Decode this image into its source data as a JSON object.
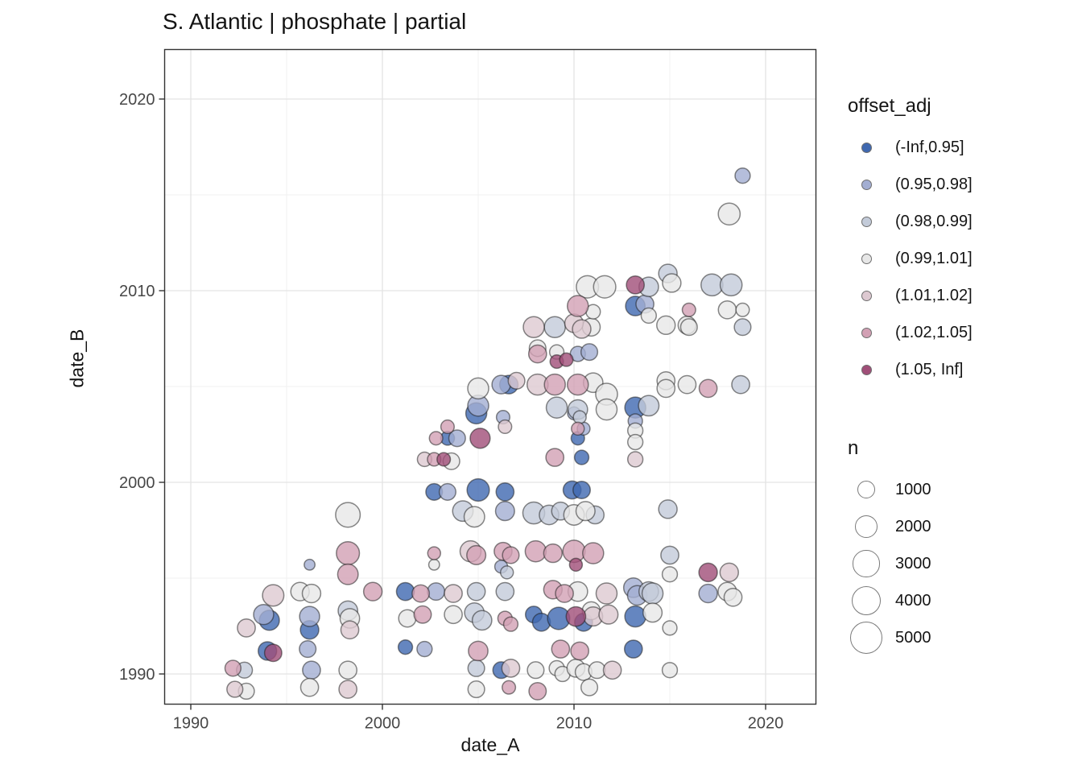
{
  "title": "S. Atlantic | phosphate | partial",
  "legend": {
    "color": {
      "title": "offset_adj",
      "items": [
        {
          "label": "(-Inf,0.95]",
          "color": "#3f68b0"
        },
        {
          "label": "(0.95,0.98]",
          "color": "#a3aed2"
        },
        {
          "label": "(0.98,0.99]",
          "color": "#c3cbd9"
        },
        {
          "label": "(0.99,1.01]",
          "color": "#e7e7e7"
        },
        {
          "label": "(1.01,1.02]",
          "color": "#ddc9d1"
        },
        {
          "label": "(1.02,1.05]",
          "color": "#d2a0b4"
        },
        {
          "label": "(1.05, Inf]",
          "color": "#a04e78"
        }
      ]
    },
    "size": {
      "title": "n",
      "items": [
        1000,
        2000,
        3000,
        4000,
        5000
      ]
    }
  },
  "chart_data": {
    "type": "scatter",
    "title": "S. Atlantic | phosphate | partial",
    "xlabel": "date_A",
    "ylabel": "date_B",
    "x_ticks": [
      1990,
      2000,
      2010,
      2020
    ],
    "y_ticks": [
      1990,
      2000,
      2010,
      2020
    ],
    "x_minor_ticks": [
      1995,
      2005,
      2015
    ],
    "y_minor_ticks": [
      1995,
      2005,
      2015
    ],
    "x_range": [
      1988.6,
      2022.6
    ],
    "y_range": [
      1988.4,
      2022.6
    ],
    "grid": "major+minor",
    "legend_position": "right",
    "size_title": "n",
    "color_title": "offset_adj",
    "series": [
      {
        "name": "(-Inf,0.95]",
        "color": "#3f68b0",
        "points": [
          [
            1994.1,
            1992.8,
            1300
          ],
          [
            1994.0,
            1991.2,
            1000
          ],
          [
            1996.2,
            1992.3,
            1000
          ],
          [
            2001.2,
            1994.3,
            900
          ],
          [
            2001.2,
            1991.4,
            400
          ],
          [
            2002.7,
            1999.5,
            700
          ],
          [
            2005.0,
            1999.6,
            1800
          ],
          [
            2006.4,
            1999.5,
            900
          ],
          [
            2009.9,
            1999.6,
            900
          ],
          [
            2010.4,
            1999.6,
            800
          ],
          [
            2007.9,
            1993.1,
            700
          ],
          [
            2008.3,
            1992.7,
            900
          ],
          [
            2009.2,
            1992.9,
            1800
          ],
          [
            2010.5,
            1992.7,
            900
          ],
          [
            2013.2,
            1993.0,
            1500
          ],
          [
            2013.1,
            1991.3,
            900
          ],
          [
            2006.2,
            1990.2,
            700
          ],
          [
            2003.4,
            2002.3,
            350
          ],
          [
            2004.9,
            2003.6,
            1500
          ],
          [
            2006.6,
            2005.1,
            1000
          ],
          [
            2010.4,
            2001.3,
            400
          ],
          [
            2010.2,
            2002.3,
            300
          ],
          [
            2013.2,
            2003.9,
            1500
          ],
          [
            2013.2,
            2009.2,
            1200
          ]
        ]
      },
      {
        "name": "(0.95,0.98]",
        "color": "#a3aed2",
        "points": [
          [
            1993.8,
            1993.1,
            1300
          ],
          [
            1996.2,
            1995.7,
            100
          ],
          [
            1996.2,
            1993.0,
            1300
          ],
          [
            1996.1,
            1991.3,
            700
          ],
          [
            1996.3,
            1990.2,
            900
          ],
          [
            2002.8,
            1994.3,
            800
          ],
          [
            2002.2,
            1991.3,
            500
          ],
          [
            2003.4,
            1999.5,
            700
          ],
          [
            2006.2,
            1995.6,
            250
          ],
          [
            2006.4,
            1998.5,
            1100
          ],
          [
            2013.1,
            1994.5,
            1200
          ],
          [
            2013.3,
            1994.1,
            1200
          ],
          [
            2017.0,
            1994.2,
            1000
          ],
          [
            2003.9,
            2002.3,
            700
          ],
          [
            2005.0,
            2004.0,
            1500
          ],
          [
            2006.2,
            2005.1,
            1000
          ],
          [
            2006.3,
            2003.4,
            300
          ],
          [
            2010.0,
            2003.6,
            250
          ],
          [
            2010.5,
            2002.8,
            250
          ],
          [
            2010.2,
            2006.7,
            500
          ],
          [
            2010.8,
            2006.8,
            700
          ],
          [
            2013.2,
            2003.2,
            400
          ],
          [
            2013.7,
            2009.3,
            900
          ],
          [
            2018.8,
            2016.0,
            500
          ]
        ]
      },
      {
        "name": "(0.98,0.99]",
        "color": "#c3cbd9",
        "points": [
          [
            1992.8,
            1990.2,
            600
          ],
          [
            1998.2,
            1993.3,
            1200
          ],
          [
            2004.2,
            1998.5,
            1400
          ],
          [
            2006.5,
            1995.3,
            250
          ],
          [
            2007.9,
            1998.4,
            1700
          ],
          [
            2008.7,
            1998.3,
            1200
          ],
          [
            2009.3,
            1998.5,
            900
          ],
          [
            2011.1,
            1998.3,
            900
          ],
          [
            2014.9,
            1998.6,
            1000
          ],
          [
            2004.9,
            1994.3,
            900
          ],
          [
            2006.4,
            1994.3,
            900
          ],
          [
            2013.9,
            1994.3,
            1200
          ],
          [
            2004.8,
            1993.2,
            1200
          ],
          [
            2005.2,
            1992.8,
            1200
          ],
          [
            2004.9,
            1990.3,
            700
          ],
          [
            2014.1,
            1994.2,
            1500
          ],
          [
            2015.0,
            1996.2,
            900
          ],
          [
            2009.1,
            2003.9,
            1500
          ],
          [
            2010.2,
            2003.8,
            1200
          ],
          [
            2010.3,
            2003.4,
            250
          ],
          [
            2013.9,
            2004.0,
            1400
          ],
          [
            2009.0,
            2008.1,
            1500
          ],
          [
            2013.9,
            2010.2,
            1200
          ],
          [
            2014.9,
            2010.9,
            1000
          ],
          [
            2017.2,
            2010.3,
            1700
          ],
          [
            2018.2,
            2010.3,
            1700
          ],
          [
            2018.7,
            2005.1,
            900
          ],
          [
            2018.8,
            2008.1,
            700
          ]
        ]
      },
      {
        "name": "(0.99,1.01]",
        "color": "#e7e7e7",
        "points": [
          [
            1992.9,
            1989.1,
            600
          ],
          [
            1995.7,
            1994.3,
            1000
          ],
          [
            1996.3,
            1994.2,
            1000
          ],
          [
            1996.2,
            1989.3,
            900
          ],
          [
            1998.2,
            1998.3,
            2400
          ],
          [
            1998.3,
            1992.9,
            1200
          ],
          [
            1998.2,
            1990.2,
            900
          ],
          [
            2001.3,
            1992.9,
            800
          ],
          [
            2002.7,
            1995.7,
            100
          ],
          [
            2004.8,
            1998.2,
            1400
          ],
          [
            2010.0,
            1998.3,
            1400
          ],
          [
            2010.6,
            1998.5,
            1100
          ],
          [
            2010.2,
            1994.3,
            1200
          ],
          [
            2003.7,
            1993.1,
            900
          ],
          [
            2010.9,
            1993.3,
            900
          ],
          [
            2014.1,
            1993.2,
            1100
          ],
          [
            2015.0,
            1992.4,
            400
          ],
          [
            2008.0,
            1990.2,
            700
          ],
          [
            2009.1,
            1990.3,
            500
          ],
          [
            2009.4,
            1990.0,
            500
          ],
          [
            2010.1,
            1990.3,
            900
          ],
          [
            2010.5,
            1990.1,
            700
          ],
          [
            2011.2,
            1990.2,
            700
          ],
          [
            2015.0,
            1990.2,
            500
          ],
          [
            2004.9,
            1989.2,
            700
          ],
          [
            2010.8,
            1989.3,
            700
          ],
          [
            2015.0,
            1995.2,
            500
          ],
          [
            2018.0,
            1994.3,
            1000
          ],
          [
            2018.3,
            1994.0,
            900
          ],
          [
            2003.6,
            2001.1,
            700
          ],
          [
            2005.0,
            2004.9,
            1500
          ],
          [
            2011.0,
            2005.2,
            1200
          ],
          [
            2011.7,
            2004.6,
            1700
          ],
          [
            2014.8,
            2005.3,
            900
          ],
          [
            2014.8,
            2004.9,
            900
          ],
          [
            2015.9,
            2005.1,
            900
          ],
          [
            2011.7,
            2003.8,
            1500
          ],
          [
            2013.2,
            2002.7,
            500
          ],
          [
            2013.2,
            2002.1,
            500
          ],
          [
            2008.1,
            2007.0,
            700
          ],
          [
            2009.1,
            2006.8,
            400
          ],
          [
            2010.9,
            2008.1,
            900
          ],
          [
            2011.0,
            2008.9,
            400
          ],
          [
            2013.9,
            2008.7,
            500
          ],
          [
            2014.8,
            2008.2,
            1000
          ],
          [
            2015.9,
            2008.2,
            900
          ],
          [
            2016.0,
            2008.1,
            700
          ],
          [
            2018.0,
            2009.0,
            900
          ],
          [
            2018.8,
            2009.0,
            300
          ],
          [
            2010.7,
            2010.2,
            1800
          ],
          [
            2011.6,
            2010.2,
            1800
          ],
          [
            2015.1,
            2010.4,
            1000
          ],
          [
            2018.1,
            2014.0,
            1700
          ]
        ]
      },
      {
        "name": "(1.01,1.02]",
        "color": "#ddc9d1",
        "points": [
          [
            1992.9,
            1992.4,
            900
          ],
          [
            1992.3,
            1989.2,
            600
          ],
          [
            1994.3,
            1994.1,
            1600
          ],
          [
            1998.3,
            1992.3,
            900
          ],
          [
            1998.2,
            1989.2,
            900
          ],
          [
            2003.7,
            1994.2,
            900
          ],
          [
            2011.7,
            1994.2,
            1500
          ],
          [
            2011.0,
            1993.0,
            1100
          ],
          [
            2011.8,
            1993.1,
            1100
          ],
          [
            2004.6,
            1996.4,
            1500
          ],
          [
            2006.7,
            1990.3,
            900
          ],
          [
            2012.0,
            1990.2,
            900
          ],
          [
            2018.1,
            1995.3,
            1000
          ],
          [
            2002.2,
            2001.2,
            400
          ],
          [
            2013.2,
            2001.2,
            500
          ],
          [
            2006.4,
            2002.9,
            300
          ],
          [
            2007.0,
            2005.3,
            700
          ],
          [
            2008.1,
            2005.1,
            1500
          ],
          [
            2007.9,
            2008.1,
            1500
          ],
          [
            2010.0,
            2008.3,
            1000
          ],
          [
            2010.4,
            2008.0,
            1000
          ]
        ]
      },
      {
        "name": "(1.02,1.05]",
        "color": "#d2a0b4",
        "points": [
          [
            1992.2,
            1990.3,
            600
          ],
          [
            1998.2,
            1996.3,
            2000
          ],
          [
            1998.2,
            1995.2,
            1400
          ],
          [
            1999.5,
            1994.3,
            1000
          ],
          [
            2002.0,
            1994.2,
            800
          ],
          [
            2002.1,
            1993.1,
            800
          ],
          [
            2002.7,
            1996.3,
            250
          ],
          [
            2004.9,
            1996.2,
            1100
          ],
          [
            2006.3,
            1996.4,
            900
          ],
          [
            2006.7,
            1996.2,
            700
          ],
          [
            2008.0,
            1996.4,
            1500
          ],
          [
            2008.9,
            1996.3,
            1000
          ],
          [
            2010.0,
            1996.4,
            1800
          ],
          [
            2011.0,
            1996.3,
            1500
          ],
          [
            2006.4,
            1992.9,
            400
          ],
          [
            2006.7,
            1992.6,
            400
          ],
          [
            2005.0,
            1991.2,
            1200
          ],
          [
            2009.3,
            1991.3,
            900
          ],
          [
            2010.3,
            1991.2,
            900
          ],
          [
            2006.6,
            1989.3,
            300
          ],
          [
            2008.1,
            1989.1,
            800
          ],
          [
            2008.9,
            1994.4,
            1000
          ],
          [
            2009.5,
            1994.2,
            900
          ],
          [
            2002.7,
            2001.2,
            300
          ],
          [
            2003.4,
            2002.9,
            300
          ],
          [
            2002.8,
            2002.3,
            300
          ],
          [
            2009.0,
            2001.3,
            900
          ],
          [
            2009.0,
            2005.1,
            1500
          ],
          [
            2010.2,
            2005.1,
            1500
          ],
          [
            2017.0,
            2004.9,
            900
          ],
          [
            2010.2,
            2002.8,
            250
          ],
          [
            2008.1,
            2006.7,
            900
          ],
          [
            2010.2,
            2009.2,
            1500
          ],
          [
            2016.0,
            2009.0,
            300
          ]
        ]
      },
      {
        "name": "(1.05, Inf]",
        "color": "#a04e78",
        "points": [
          [
            1994.3,
            1991.1,
            800
          ],
          [
            2010.1,
            1995.7,
            250
          ],
          [
            2010.1,
            1993.0,
            1200
          ],
          [
            2017.0,
            1995.3,
            1000
          ],
          [
            2003.2,
            2001.2,
            300
          ],
          [
            2005.1,
            2002.3,
            1300
          ],
          [
            2009.1,
            2006.3,
            300
          ],
          [
            2009.6,
            2006.4,
            300
          ],
          [
            2013.2,
            2010.3,
            900
          ]
        ]
      }
    ]
  }
}
